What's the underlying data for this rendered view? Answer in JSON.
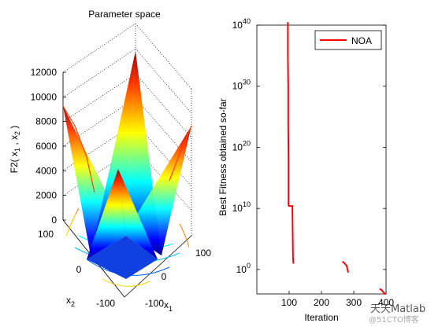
{
  "chart_data": [
    {
      "type": "surface",
      "title": "Parameter space",
      "zlabel": "F2( x1 , x2 )",
      "xlabel": "x1",
      "ylabel": "x2",
      "x_range": [
        -100,
        100
      ],
      "y_range": [
        -100,
        100
      ],
      "zlim": [
        0,
        12000
      ],
      "z_ticks": [
        "0",
        "2000",
        "4000",
        "6000",
        "8000",
        "10000",
        "12000"
      ],
      "x_ticks": [
        "-100",
        "0",
        "100"
      ],
      "y_ticks": [
        "-100",
        "0",
        "100"
      ],
      "colormap": "jet",
      "grid": true
    },
    {
      "type": "line",
      "xlabel": "Iteration",
      "ylabel": "Best Fitness obtained so-far",
      "xlim": [
        0,
        400
      ],
      "ylim_log10": [
        -4,
        40
      ],
      "y_scale": "log",
      "x_ticks": [
        "100",
        "200",
        "300",
        "400"
      ],
      "y_ticks": [
        {
          "base": "10",
          "exp": "0",
          "log": 0
        },
        {
          "base": "10",
          "exp": "10",
          "log": 10
        },
        {
          "base": "10",
          "exp": "20",
          "log": 20
        },
        {
          "base": "10",
          "exp": "30",
          "log": 30
        },
        {
          "base": "10",
          "exp": "40",
          "log": 40
        }
      ],
      "legend": "top-right",
      "series": [
        {
          "name": "NOA",
          "color": "#ff0000",
          "segments": [
            [
              [
                96,
                40.5
              ],
              [
                96,
                35
              ],
              [
                97,
                30
              ],
              [
                97,
                24
              ],
              [
                98,
                18
              ],
              [
                98,
                10.5
              ],
              [
                99,
                10.4
              ],
              [
                110,
                10.4
              ],
              [
                111,
                6
              ],
              [
                112,
                2
              ],
              [
                113,
                1.1
              ],
              [
                115,
                1.1
              ]
            ],
            [
              [
                265,
                1.3
              ],
              [
                270,
                1.1
              ],
              [
                278,
                0.6
              ],
              [
                283,
                -0.5
              ]
            ],
            [
              [
                380,
                -3.2
              ],
              [
                385,
                -3.3
              ],
              [
                388,
                -3.5
              ],
              [
                393,
                -3.8
              ],
              [
                397,
                -4.0
              ],
              [
                400,
                -4.0
              ]
            ]
          ]
        }
      ]
    }
  ],
  "watermark": {
    "text": "天天Matlab",
    "subtext": "@51CTO博客"
  }
}
